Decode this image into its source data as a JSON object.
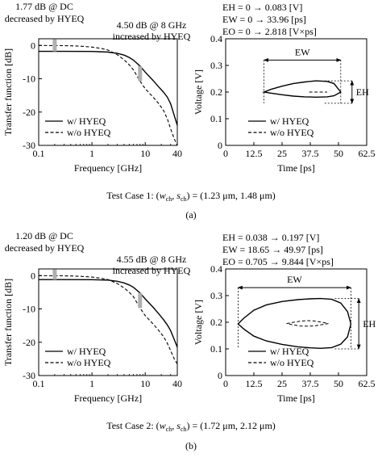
{
  "figure": {
    "panels": [
      {
        "label": "(a)",
        "caption": "Test Case 1: (w_ch, s_ch) = (1.23 μm, 1.48 μm)",
        "caption_parts": {
          "prefix": "Test Case 1: (",
          "w": "w",
          "w_sub": "ch",
          "comma": ", ",
          "s": "s",
          "s_sub": "ch",
          "suffix": ") = (1.23 μm, 1.48 μm)"
        },
        "transfer_annotations": {
          "dc_line1": "1.77 dB @ DC",
          "dc_line2": "decreased by HYEQ",
          "ghz_line1": "4.50 dB @ 8 GHz",
          "ghz_line2": "increased by HYEQ"
        },
        "eye_annotations": {
          "eh": "EH = 0 → 0.083 [V]",
          "ew": "EW = 0 → 33.96 [ps]",
          "eo": "EO = 0 → 2.818 [V×ps]",
          "ew_label": "EW",
          "eh_label": "EH"
        }
      },
      {
        "label": "(b)",
        "caption": "Test Case 2: (w_ch, s_ch) = (1.72 μm, 2.12 μm)",
        "caption_parts": {
          "prefix": "Test Case 2: (",
          "w": "w",
          "w_sub": "ch",
          "comma": ", ",
          "s": "s",
          "s_sub": "ch",
          "suffix": ") = (1.72 μm, 2.12 μm)"
        },
        "transfer_annotations": {
          "dc_line1": "1.20 dB @ DC",
          "dc_line2": "decreased by HYEQ",
          "ghz_line1": "4.55 dB @ 8 GHz",
          "ghz_line2": "increased by HYEQ"
        },
        "eye_annotations": {
          "eh": "EH = 0.038 → 0.197 [V]",
          "ew": "EW = 18.65 → 49.97 [ps]",
          "eo": "EO = 0.705 → 9.844 [V×ps]",
          "ew_label": "EW",
          "eh_label": "EH"
        }
      }
    ],
    "colors": {
      "curve": "#000000",
      "marker_arrow": "#b0b0b0"
    }
  },
  "chart_data": [
    {
      "type": "line",
      "panel": "(a)",
      "xlabel": "Frequency [GHz]",
      "ylabel": "Transfer function [dB]",
      "xscale": "log",
      "xlim": [
        0.1,
        40
      ],
      "ylim": [
        -30,
        2
      ],
      "xticks": [
        0.1,
        1,
        10,
        40
      ],
      "xtick_labels": [
        "0.1",
        "1",
        "10",
        "40"
      ],
      "yticks": [
        0,
        -10,
        -20,
        -30
      ],
      "ytick_labels": [
        "0",
        "-10",
        "-20",
        "-30"
      ],
      "legend": "bottom-left",
      "series": [
        {
          "name": "w/ HYEQ",
          "style": "solid",
          "x": [
            0.1,
            0.3,
            1,
            2,
            3,
            4,
            5,
            6,
            8,
            10,
            14,
            18,
            22,
            26,
            30,
            35,
            40
          ],
          "y": [
            -1.77,
            -1.78,
            -1.8,
            -2.0,
            -2.4,
            -2.9,
            -3.6,
            -4.4,
            -6.2,
            -8.0,
            -10.5,
            -12.5,
            -14.0,
            -15.5,
            -17.5,
            -21,
            -24
          ]
        },
        {
          "name": "w/o HYEQ",
          "style": "dashed",
          "x": [
            0.1,
            0.3,
            0.6,
            1,
            1.5,
            2,
            3,
            4,
            5,
            6,
            8,
            10,
            14,
            18,
            22,
            26,
            30,
            35,
            40
          ],
          "y": [
            0,
            -0.05,
            -0.2,
            -0.5,
            -0.9,
            -1.4,
            -2.8,
            -4.3,
            -5.8,
            -7.3,
            -10.7,
            -13.0,
            -15.5,
            -17.5,
            -19.5,
            -22,
            -25,
            -28,
            -30
          ]
        }
      ]
    },
    {
      "type": "line",
      "panel": "(a)",
      "xlabel": "Time [ps]",
      "ylabel": "Voltage [V]",
      "xlim": [
        0,
        62.5
      ],
      "ylim": [
        0,
        0.4
      ],
      "xticks": [
        0,
        12.5,
        25,
        37.5,
        50,
        62.5
      ],
      "xtick_labels": [
        "0",
        "12.5",
        "25",
        "37.5",
        "50",
        "62.5"
      ],
      "yticks": [
        0,
        0.1,
        0.2,
        0.3,
        0.4
      ],
      "ytick_labels": [
        "0",
        "0.1",
        "0.2",
        "0.3",
        "0.4"
      ],
      "legend": "bottom-center",
      "series": [
        {
          "name": "w/ HYEQ",
          "style": "solid",
          "upper": {
            "x": [
              17,
              20,
              25,
              30,
              35,
              40,
              45,
              48,
              51
            ],
            "y": [
              0.2,
              0.21,
              0.222,
              0.232,
              0.238,
              0.242,
              0.24,
              0.232,
              0.2
            ]
          },
          "lower": {
            "x": [
              17,
              20,
              25,
              30,
              35,
              40,
              45,
              48,
              51
            ],
            "y": [
              0.2,
              0.196,
              0.19,
              0.185,
              0.182,
              0.181,
              0.182,
              0.186,
              0.2
            ]
          }
        },
        {
          "name": "w/o HYEQ",
          "style": "dashed",
          "x": [
            37,
            39,
            41,
            43,
            45
          ],
          "y": [
            0.2,
            0.2,
            0.2,
            0.2,
            0.2
          ]
        }
      ],
      "eye_markers": {
        "ew_x": [
          17,
          51
        ],
        "ew_y": 0.32,
        "eh_y": [
          0.158,
          0.242
        ],
        "eh_x": 56
      }
    },
    {
      "type": "line",
      "panel": "(b)",
      "xlabel": "Frequency [GHz]",
      "ylabel": "Transfer function [dB]",
      "xscale": "log",
      "xlim": [
        0.1,
        40
      ],
      "ylim": [
        -30,
        2
      ],
      "xticks": [
        0.1,
        1,
        10,
        40
      ],
      "xtick_labels": [
        "0.1",
        "1",
        "10",
        "40"
      ],
      "yticks": [
        0,
        -10,
        -20,
        -30
      ],
      "ytick_labels": [
        "0",
        "-10",
        "-20",
        "-30"
      ],
      "legend": "bottom-left",
      "series": [
        {
          "name": "w/ HYEQ",
          "style": "solid",
          "x": [
            0.1,
            0.3,
            1,
            2,
            3,
            4,
            5,
            6,
            8,
            10,
            14,
            18,
            22,
            26,
            30,
            35,
            40
          ],
          "y": [
            -1.2,
            -1.21,
            -1.22,
            -1.35,
            -1.7,
            -2.2,
            -2.8,
            -3.5,
            -5.2,
            -7.0,
            -9.5,
            -11.5,
            -13.2,
            -14.8,
            -16.5,
            -19.2,
            -21.5
          ]
        },
        {
          "name": "w/o HYEQ",
          "style": "dashed",
          "x": [
            0.1,
            0.3,
            0.6,
            1,
            1.5,
            2,
            3,
            4,
            5,
            6,
            8,
            10,
            14,
            18,
            22,
            26,
            30,
            35,
            40
          ],
          "y": [
            0,
            -0.05,
            -0.2,
            -0.45,
            -0.8,
            -1.2,
            -2.4,
            -3.7,
            -5.0,
            -6.3,
            -9.75,
            -12.0,
            -14.5,
            -16.5,
            -18.3,
            -20.3,
            -22.5,
            -25,
            -26.5
          ]
        }
      ]
    },
    {
      "type": "line",
      "panel": "(b)",
      "xlabel": "Time [ps]",
      "ylabel": "Voltage [V]",
      "xlim": [
        0,
        62.5
      ],
      "ylim": [
        0,
        0.4
      ],
      "xticks": [
        0,
        12.5,
        25,
        37.5,
        50,
        62.5
      ],
      "xtick_labels": [
        "0",
        "12.5",
        "25",
        "37.5",
        "50",
        "62.5"
      ],
      "yticks": [
        0,
        0.1,
        0.2,
        0.3,
        0.4
      ],
      "ytick_labels": [
        "0",
        "0.1",
        "0.2",
        "0.3",
        "0.4"
      ],
      "legend": "bottom-center",
      "series": [
        {
          "name": "w/ HYEQ",
          "style": "solid",
          "upper": {
            "x": [
              5.5,
              8,
              12.5,
              18,
              25,
              32,
              37.5,
              42,
              47,
              51,
              54,
              55.5
            ],
            "y": [
              0.194,
              0.215,
              0.245,
              0.265,
              0.278,
              0.285,
              0.288,
              0.289,
              0.286,
              0.272,
              0.24,
              0.194
            ]
          },
          "lower": {
            "x": [
              5.5,
              8,
              12.5,
              18,
              25,
              32,
              37.5,
              42,
              47,
              51,
              54,
              55.5
            ],
            "y": [
              0.194,
              0.175,
              0.148,
              0.13,
              0.117,
              0.108,
              0.104,
              0.102,
              0.105,
              0.118,
              0.145,
              0.194
            ]
          }
        },
        {
          "name": "w/o HYEQ",
          "style": "dashed",
          "upper": {
            "x": [
              27,
              30,
              33,
              36,
              39,
              42,
              45.5
            ],
            "y": [
              0.195,
              0.2,
              0.204,
              0.206,
              0.205,
              0.201,
              0.195
            ]
          },
          "lower": {
            "x": [
              27,
              30,
              33,
              36,
              39,
              42,
              45.5
            ],
            "y": [
              0.195,
              0.19,
              0.186,
              0.185,
              0.186,
              0.19,
              0.195
            ]
          }
        }
      ],
      "eye_markers": {
        "ew_x": [
          5.5,
          55.5
        ],
        "ew_y": 0.33,
        "eh_y": [
          0.1,
          0.289
        ],
        "eh_x": 59
      }
    }
  ]
}
